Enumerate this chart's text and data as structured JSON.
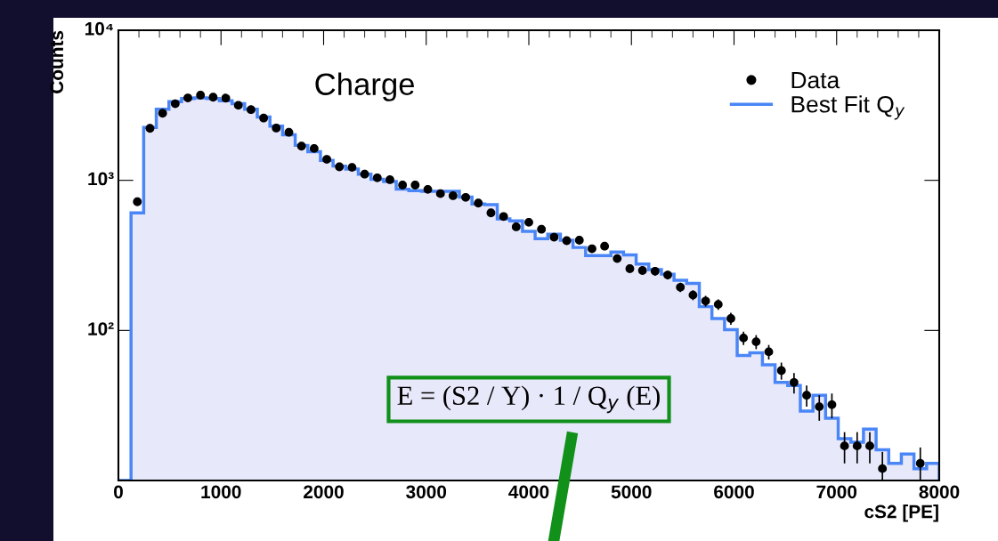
{
  "chart_data": {
    "type": "histogram",
    "title": "Charge",
    "xlabel": "cS2 [PE]",
    "ylabel": "Counts",
    "log": "y",
    "xlim": [
      0,
      8000
    ],
    "ylim": [
      10,
      10000
    ],
    "xticks": [
      0,
      1000,
      2000,
      3000,
      4000,
      5000,
      6000,
      7000,
      8000
    ],
    "yticks": [
      {
        "value": 100,
        "label": "10²"
      },
      {
        "value": 1000,
        "label": "10³"
      },
      {
        "value": 10000,
        "label": "10⁴"
      }
    ],
    "grid": false,
    "legend": "top right",
    "bins": [
      0,
      123.1,
      246.2,
      369.2,
      492.3,
      615.4,
      738.5,
      861.5,
      984.6,
      1107.7,
      1230.8,
      1353.8,
      1476.9,
      1600,
      1723.1,
      1846.2,
      1969.2,
      2092.3,
      2215.4,
      2338.5,
      2461.5,
      2584.6,
      2707.7,
      2830.8,
      2953.8,
      3076.9,
      3200,
      3323.1,
      3446.2,
      3569.2,
      3692.3,
      3815.4,
      3938.5,
      4061.5,
      4184.6,
      4307.7,
      4430.8,
      4553.8,
      4676.9,
      4800,
      4923.1,
      5046.2,
      5169.2,
      5292.3,
      5415.4,
      5538.5,
      5661.5,
      5784.6,
      5907.7,
      6030.8,
      6153.8,
      6276.9,
      6400,
      6523.1,
      6646.2,
      6769.2,
      6892.3,
      7015.4,
      7138.5,
      7261.5,
      7384.6,
      7507.7,
      7630.8,
      7753.8,
      7876.9,
      8000
    ],
    "series": [
      {
        "name": "Best Fit Q$_{y}$",
        "color": "#4a86f7",
        "values": [
          10,
          607,
          2250,
          2980,
          3340,
          3510,
          3540,
          3510,
          3390,
          3240,
          2980,
          2640,
          2300,
          2010,
          1710,
          1550,
          1360,
          1245,
          1190,
          1100,
          1015,
          983,
          873,
          854,
          845,
          845,
          845,
          773,
          695,
          689,
          553,
          537,
          457,
          408,
          437,
          399,
          357,
          315,
          315,
          333,
          318,
          277,
          254,
          237,
          216,
          206,
          144,
          120,
          101,
          68,
          71,
          59,
          45,
          43,
          29,
          37,
          26,
          19,
          18,
          22,
          16,
          13,
          15,
          12,
          13
        ]
      },
      {
        "name": "Data",
        "type": "scatter",
        "color": "#000000",
        "marker": "circle",
        "x": [
          184.6,
          307.7,
          430.8,
          553.8,
          676.9,
          800,
          923.1,
          1046.2,
          1169.2,
          1292.3,
          1415.4,
          1538.5,
          1661.5,
          1784.6,
          1907.7,
          2030.8,
          2153.8,
          2276.9,
          2400,
          2523.1,
          2646.2,
          2769.2,
          2892.3,
          3015.4,
          3138.5,
          3261.5,
          3384.6,
          3507.7,
          3630.8,
          3753.8,
          3876.9,
          4000,
          4123.1,
          4246.2,
          4369.2,
          4492.3,
          4615.4,
          4738.5,
          4861.5,
          4984.6,
          5107.7,
          5230.8,
          5353.8,
          5476.9,
          5600,
          5723.1,
          5846.2,
          5969.2,
          6092.3,
          6215.4,
          6338.5,
          6461.5,
          6584.6,
          6707.7,
          6830.8,
          6953.8,
          7076.9,
          7200,
          7323.1,
          7446.2,
          7815.4
        ],
        "values": [
          720,
          2220,
          2800,
          3240,
          3540,
          3690,
          3580,
          3530,
          3160,
          2960,
          2600,
          2230,
          2090,
          1690,
          1630,
          1380,
          1230,
          1220,
          1100,
          1040,
          1010,
          930,
          930,
          870,
          815,
          790,
          770,
          705,
          607,
          574,
          490,
          525,
          472,
          418,
          396,
          399,
          350,
          364,
          301,
          258,
          251,
          248,
          234,
          194,
          172,
          157,
          149,
          120,
          89,
          84,
          72,
          54,
          45,
          37,
          31,
          32,
          17,
          17,
          17,
          12,
          13
        ],
        "errors": [
          27,
          47,
          53,
          57,
          60,
          61,
          60,
          59,
          56,
          54,
          51,
          47,
          46,
          41,
          40,
          37,
          35,
          35,
          33,
          32,
          32,
          30,
          30,
          29,
          29,
          28,
          28,
          27,
          25,
          24,
          22,
          23,
          22,
          20,
          20,
          20,
          19,
          19,
          17,
          16,
          16,
          16,
          15,
          14,
          13,
          13,
          12,
          11,
          9,
          9,
          8,
          7,
          7,
          6,
          6,
          6,
          4,
          4,
          4,
          3.5,
          3.6
        ]
      }
    ],
    "annotations": [
      "E = (S2 / Y) · 1 / Q$_{y}$ (E)"
    ]
  }
}
